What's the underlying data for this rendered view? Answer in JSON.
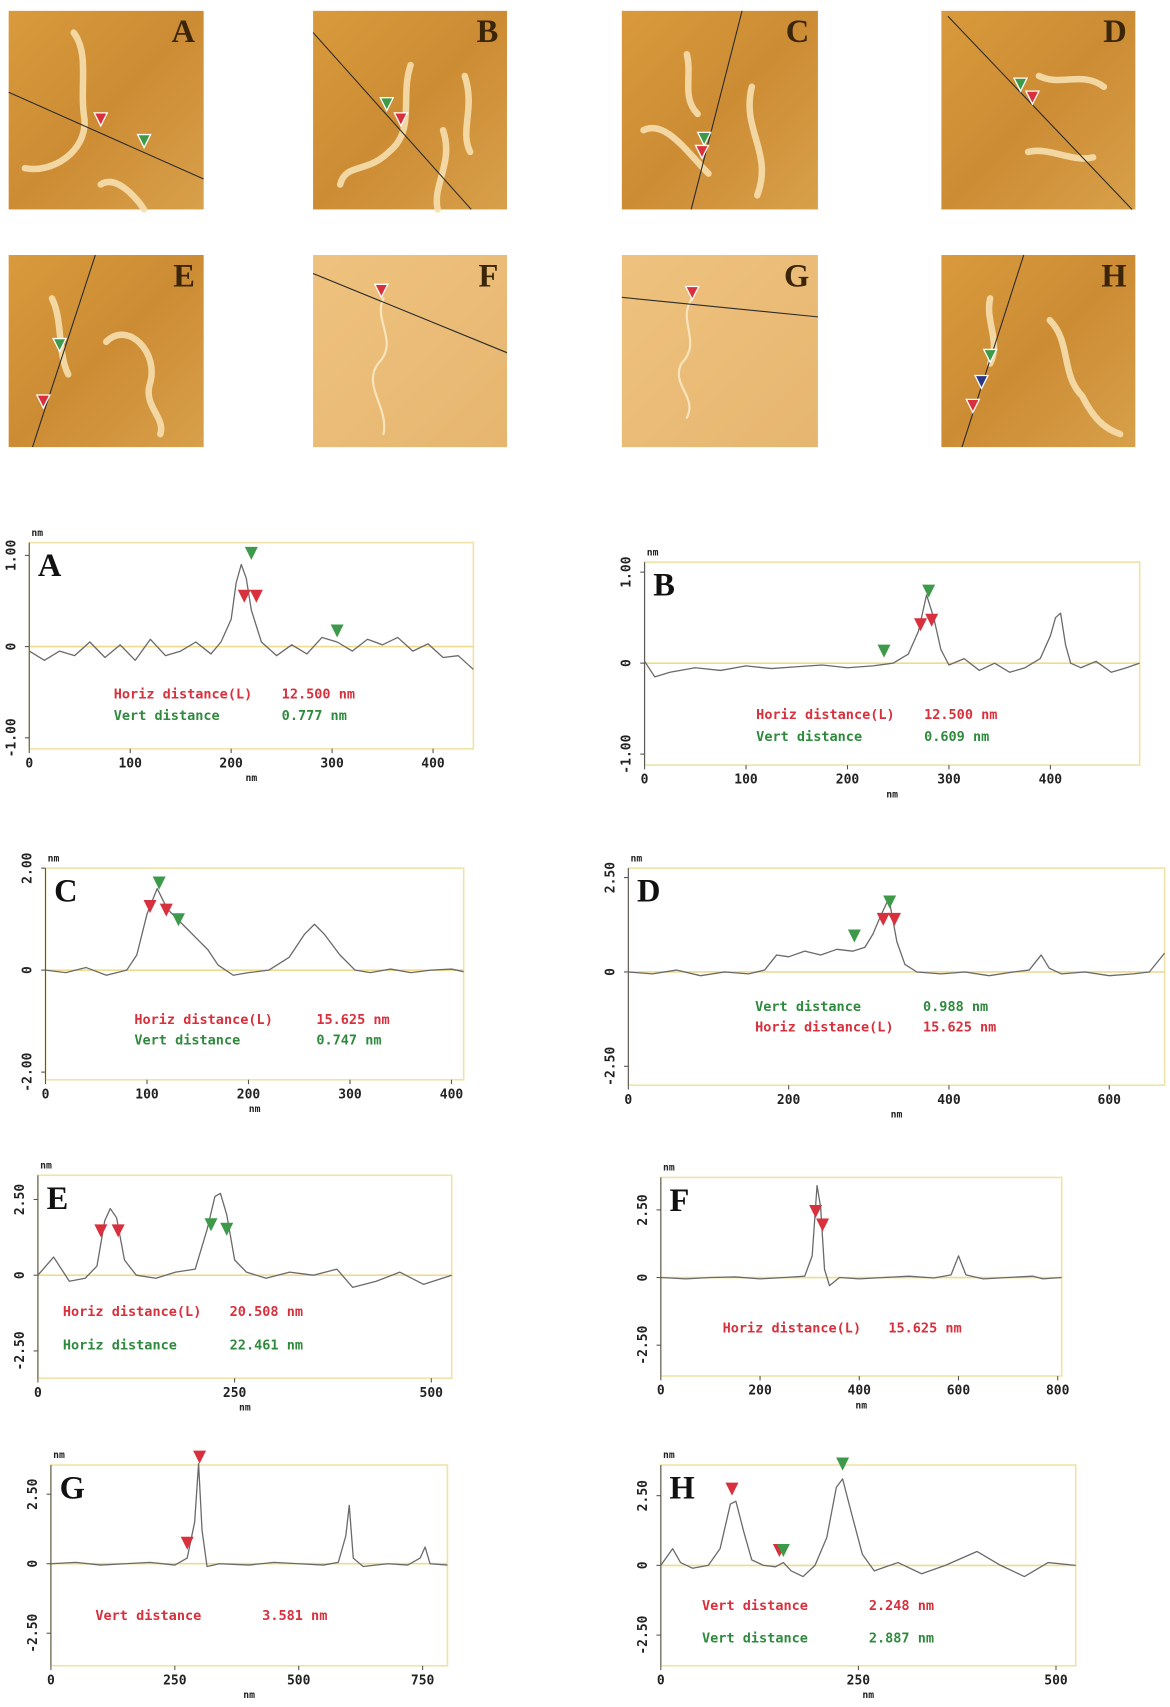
{
  "images": [
    {
      "label": "A"
    },
    {
      "label": "B"
    },
    {
      "label": "C"
    },
    {
      "label": "D"
    },
    {
      "label": "E"
    },
    {
      "label": "F"
    },
    {
      "label": "G"
    },
    {
      "label": "H"
    }
  ],
  "chart_data": [
    {
      "type": "line",
      "panel": "A",
      "y_unit": "nm",
      "x_label": "nm",
      "xlim": [
        0,
        440
      ],
      "xticks": [
        0,
        100,
        200,
        300,
        400
      ],
      "ylim": [
        -1.12,
        1.14
      ],
      "yticks": [
        {
          "value": -1,
          "label": "-1.00"
        },
        0,
        {
          "value": 1,
          "label": "1.00"
        }
      ],
      "x": [
        0,
        15,
        30,
        45,
        60,
        75,
        90,
        105,
        120,
        135,
        150,
        165,
        180,
        190,
        200,
        205,
        210,
        215,
        220,
        230,
        245,
        260,
        275,
        290,
        305,
        320,
        335,
        350,
        365,
        380,
        395,
        410,
        425,
        440
      ],
      "series": [
        {
          "color": "#6a6a6a",
          "values": [
            -0.05,
            -0.15,
            -0.05,
            -0.1,
            0.05,
            -0.12,
            0.02,
            -0.15,
            0.08,
            -0.1,
            -0.05,
            0.05,
            -0.08,
            0.05,
            0.3,
            0.7,
            0.9,
            0.75,
            0.4,
            0.05,
            -0.1,
            0.02,
            -0.08,
            0.1,
            0.05,
            -0.05,
            0.08,
            0.02,
            0.1,
            -0.05,
            0.03,
            -0.12,
            -0.1,
            -0.25
          ]
        }
      ],
      "markers": [
        {
          "x": 220,
          "y": 0.95,
          "color": "#3d9a4a"
        },
        {
          "x": 213,
          "y": 0.48,
          "color": "#d8303c"
        },
        {
          "x": 225,
          "y": 0.48,
          "color": "#d8303c"
        },
        {
          "x": 305,
          "y": 0.1,
          "color": "#3d9a4a"
        }
      ],
      "annotations": [
        {
          "label": "Horiz distance(L)",
          "value": "12.500 nm",
          "color": "#d8303c"
        },
        {
          "label": "Vert distance",
          "value": "0.777 nm",
          "color": "#2f8a3e"
        }
      ]
    },
    {
      "type": "line",
      "panel": "B",
      "y_unit": "nm",
      "x_label": "nm",
      "xlim": [
        0,
        488
      ],
      "xticks": [
        0,
        100,
        200,
        300,
        400
      ],
      "ylim": [
        -1.12,
        1.11
      ],
      "yticks": [
        {
          "value": -1,
          "label": "-1.00"
        },
        0,
        {
          "value": 1,
          "label": "1.00"
        }
      ],
      "x": [
        0,
        10,
        25,
        50,
        75,
        100,
        125,
        150,
        175,
        200,
        225,
        245,
        260,
        270,
        278,
        285,
        292,
        300,
        315,
        330,
        345,
        360,
        375,
        390,
        400,
        405,
        410,
        415,
        420,
        430,
        445,
        460,
        475,
        488
      ],
      "series": [
        {
          "color": "#6a6a6a",
          "values": [
            0.02,
            -0.15,
            -0.1,
            -0.05,
            -0.08,
            -0.03,
            -0.06,
            -0.04,
            -0.02,
            -0.05,
            -0.03,
            0.0,
            0.1,
            0.35,
            0.75,
            0.5,
            0.15,
            -0.02,
            0.05,
            -0.08,
            0.0,
            -0.1,
            -0.05,
            0.05,
            0.3,
            0.5,
            0.55,
            0.2,
            0.0,
            -0.05,
            0.02,
            -0.1,
            -0.05,
            0.0
          ]
        }
      ],
      "markers": [
        {
          "x": 236,
          "y": 0.06,
          "color": "#3d9a4a"
        },
        {
          "x": 272,
          "y": 0.35,
          "color": "#d8303c"
        },
        {
          "x": 283,
          "y": 0.4,
          "color": "#d8303c"
        },
        {
          "x": 280,
          "y": 0.72,
          "color": "#3d9a4a"
        }
      ],
      "annotations": [
        {
          "label": "Horiz distance(L)",
          "value": "12.500 nm",
          "color": "#d8303c"
        },
        {
          "label": "Vert distance",
          "value": "0.609 nm",
          "color": "#2f8a3e"
        }
      ]
    },
    {
      "type": "line",
      "panel": "C",
      "y_unit": "nm",
      "x_label": "nm",
      "xlim": [
        0,
        412
      ],
      "xticks": [
        0,
        100,
        200,
        300,
        400
      ],
      "ylim": [
        -2.15,
        2.0
      ],
      "yticks": [
        {
          "value": -2,
          "label": "-2.00"
        },
        0,
        {
          "value": 2,
          "label": "2.00"
        }
      ],
      "x": [
        0,
        20,
        40,
        60,
        80,
        90,
        100,
        110,
        120,
        130,
        140,
        150,
        160,
        170,
        185,
        200,
        220,
        240,
        255,
        265,
        275,
        290,
        305,
        320,
        340,
        360,
        380,
        400,
        412
      ],
      "series": [
        {
          "color": "#6a6a6a",
          "values": [
            0,
            -0.05,
            0.05,
            -0.1,
            0.0,
            0.3,
            1.1,
            1.6,
            1.2,
            1.0,
            0.8,
            0.6,
            0.4,
            0.1,
            -0.1,
            -0.05,
            0.0,
            0.25,
            0.7,
            0.9,
            0.7,
            0.3,
            0.0,
            -0.05,
            0.02,
            -0.05,
            0.0,
            0.02,
            -0.03
          ]
        }
      ],
      "markers": [
        {
          "x": 103,
          "y": 1.12,
          "color": "#d8303c"
        },
        {
          "x": 119,
          "y": 1.05,
          "color": "#d8303c"
        },
        {
          "x": 112,
          "y": 1.58,
          "color": "#3d9a4a"
        },
        {
          "x": 131,
          "y": 0.86,
          "color": "#3d9a4a"
        }
      ],
      "annotations": [
        {
          "label": "Horiz distance(L)",
          "value": "15.625 nm",
          "color": "#d8303c"
        },
        {
          "label": "Vert distance",
          "value": "0.747 nm",
          "color": "#2f8a3e"
        }
      ]
    },
    {
      "type": "line",
      "panel": "D",
      "y_unit": "nm",
      "x_label": "nm",
      "xlim": [
        0,
        669
      ],
      "xticks": [
        0,
        200,
        400,
        600
      ],
      "ylim": [
        -3.0,
        2.75
      ],
      "yticks": [
        {
          "value": -2.5,
          "label": "-2.50"
        },
        0,
        {
          "value": 2.5,
          "label": "2.50"
        }
      ],
      "x": [
        0,
        30,
        60,
        90,
        120,
        150,
        170,
        185,
        200,
        220,
        240,
        260,
        280,
        295,
        305,
        315,
        325,
        335,
        345,
        360,
        390,
        420,
        450,
        480,
        500,
        515,
        525,
        540,
        570,
        600,
        630,
        650,
        669
      ],
      "series": [
        {
          "color": "#6a6a6a",
          "values": [
            0,
            -0.05,
            0.05,
            -0.1,
            0.0,
            -0.05,
            0.05,
            0.45,
            0.4,
            0.55,
            0.45,
            0.6,
            0.55,
            0.65,
            1.0,
            1.5,
            1.95,
            0.8,
            0.2,
            0.0,
            -0.05,
            0.0,
            -0.1,
            0.0,
            0.05,
            0.45,
            0.1,
            -0.05,
            0.0,
            -0.1,
            -0.05,
            0.0,
            0.5
          ]
        }
      ],
      "markers": [
        {
          "x": 282,
          "y": 0.78,
          "color": "#3d9a4a"
        },
        {
          "x": 318,
          "y": 1.22,
          "color": "#d8303c"
        },
        {
          "x": 332,
          "y": 1.22,
          "color": "#d8303c"
        },
        {
          "x": 326,
          "y": 1.68,
          "color": "#3d9a4a"
        }
      ],
      "annotations": [
        {
          "label": "Vert distance",
          "value": "0.988 nm",
          "color": "#2f8a3e"
        },
        {
          "label": "Horiz distance(L)",
          "value": "15.625 nm",
          "color": "#d8303c"
        }
      ]
    },
    {
      "type": "line",
      "panel": "E",
      "y_unit": "nm",
      "x_label": "nm",
      "xlim": [
        0,
        526
      ],
      "xticks": [
        0,
        250,
        500
      ],
      "ylim": [
        -3.4,
        3.3
      ],
      "yticks": [
        {
          "value": -2.5,
          "label": "-2.50"
        },
        0,
        {
          "value": 2.5,
          "label": "2.50"
        }
      ],
      "x": [
        0,
        20,
        40,
        60,
        75,
        85,
        92,
        100,
        110,
        125,
        150,
        175,
        200,
        215,
        225,
        232,
        240,
        250,
        265,
        290,
        320,
        350,
        380,
        400,
        430,
        460,
        490,
        526
      ],
      "series": [
        {
          "color": "#6a6a6a",
          "values": [
            0,
            0.6,
            -0.2,
            -0.1,
            0.3,
            1.8,
            2.2,
            1.9,
            0.5,
            0.0,
            -0.1,
            0.1,
            0.2,
            1.5,
            2.6,
            2.7,
            2.0,
            0.5,
            0.1,
            -0.1,
            0.1,
            0.0,
            0.2,
            -0.4,
            -0.2,
            0.1,
            -0.3,
            0.0
          ]
        }
      ],
      "markers": [
        {
          "x": 80,
          "y": 1.25,
          "color": "#d8303c"
        },
        {
          "x": 102,
          "y": 1.25,
          "color": "#d8303c"
        },
        {
          "x": 220,
          "y": 1.45,
          "color": "#3d9a4a"
        },
        {
          "x": 240,
          "y": 1.3,
          "color": "#3d9a4a"
        }
      ],
      "annotations": [
        {
          "label": "Horiz distance(L)",
          "value": "20.508 nm",
          "color": "#d8303c"
        },
        {
          "label": "Horiz distance",
          "value": "22.461 nm",
          "color": "#2f8a3e"
        }
      ]
    },
    {
      "type": "line",
      "panel": "F",
      "y_unit": "nm",
      "x_label": "nm",
      "xlim": [
        0,
        808
      ],
      "xticks": [
        0,
        200,
        400,
        600,
        800
      ],
      "ylim": [
        -3.64,
        3.7
      ],
      "yticks": [
        {
          "value": -2.5,
          "label": "-2.50"
        },
        0,
        {
          "value": 2.5,
          "label": "2.50"
        }
      ],
      "x": [
        0,
        50,
        100,
        150,
        200,
        250,
        290,
        305,
        315,
        322,
        330,
        340,
        360,
        400,
        450,
        500,
        550,
        585,
        600,
        615,
        650,
        700,
        750,
        770,
        808
      ],
      "series": [
        {
          "color": "#6a6a6a",
          "values": [
            0,
            -0.05,
            0.0,
            0.02,
            -0.05,
            0.0,
            0.05,
            0.8,
            3.4,
            2.6,
            0.3,
            -0.3,
            0.0,
            -0.05,
            0.0,
            0.05,
            -0.02,
            0.1,
            0.8,
            0.1,
            -0.05,
            0.0,
            0.05,
            -0.05,
            0.0
          ]
        }
      ],
      "markers": [
        {
          "x": 312,
          "y": 2.2,
          "color": "#d8303c"
        },
        {
          "x": 326,
          "y": 1.7,
          "color": "#d8303c"
        }
      ],
      "annotations": [
        {
          "label": "Horiz distance(L)",
          "value": "15.625 nm",
          "color": "#d8303c"
        }
      ]
    },
    {
      "type": "line",
      "panel": "G",
      "y_unit": "nm",
      "x_label": "nm",
      "xlim": [
        0,
        800
      ],
      "xticks": [
        0,
        250,
        500,
        750
      ],
      "ylim": [
        -3.67,
        3.55
      ],
      "yticks": [
        {
          "value": -2.5,
          "label": "-2.50"
        },
        0,
        {
          "value": 2.5,
          "label": "2.50"
        }
      ],
      "x": [
        0,
        50,
        100,
        150,
        200,
        250,
        275,
        290,
        298,
        305,
        315,
        340,
        400,
        450,
        500,
        550,
        580,
        595,
        602,
        610,
        630,
        680,
        720,
        745,
        755,
        765,
        800
      ],
      "series": [
        {
          "color": "#6a6a6a",
          "values": [
            0,
            0.05,
            -0.05,
            0.0,
            0.05,
            -0.05,
            0.2,
            1.5,
            3.6,
            1.2,
            -0.1,
            0.0,
            -0.05,
            0.05,
            0.0,
            -0.05,
            0.05,
            1.0,
            2.1,
            0.2,
            -0.1,
            0.0,
            -0.05,
            0.2,
            0.6,
            0.0,
            -0.05
          ]
        }
      ],
      "markers": [
        {
          "x": 275,
          "y": 0.5,
          "color": "#d8303c"
        },
        {
          "x": 300,
          "y": 3.6,
          "color": "#d8303c"
        }
      ],
      "annotations": [
        {
          "label": "Vert distance",
          "value": "3.581 nm",
          "color": "#d8303c"
        }
      ]
    },
    {
      "type": "line",
      "panel": "H",
      "y_unit": "nm",
      "x_label": "nm",
      "xlim": [
        0,
        525
      ],
      "xticks": [
        0,
        250,
        500
      ],
      "ylim": [
        -3.6,
        3.6
      ],
      "yticks": [
        {
          "value": -2.5,
          "label": "-2.50"
        },
        0,
        {
          "value": 2.5,
          "label": "2.50"
        }
      ],
      "x": [
        0,
        15,
        25,
        40,
        60,
        75,
        88,
        95,
        105,
        115,
        130,
        145,
        155,
        165,
        180,
        195,
        210,
        222,
        230,
        240,
        255,
        270,
        300,
        330,
        360,
        400,
        430,
        460,
        490,
        525
      ],
      "series": [
        {
          "color": "#6a6a6a",
          "values": [
            0,
            0.6,
            0.1,
            -0.1,
            0.0,
            0.6,
            2.2,
            2.3,
            1.2,
            0.2,
            0.0,
            -0.05,
            0.1,
            -0.2,
            -0.4,
            0.0,
            1.0,
            2.8,
            3.1,
            2.0,
            0.4,
            -0.2,
            0.1,
            -0.3,
            0.0,
            0.5,
            0.0,
            -0.4,
            0.1,
            0.0
          ]
        }
      ],
      "markers": [
        {
          "x": 90,
          "y": 2.5,
          "color": "#d8303c"
        },
        {
          "x": 150,
          "y": 0.3,
          "color": "#d8303c"
        },
        {
          "x": 155,
          "y": 0.3,
          "color": "#3d9a4a"
        },
        {
          "x": 230,
          "y": 3.4,
          "color": "#3d9a4a"
        }
      ],
      "annotations": [
        {
          "label": "Vert distance",
          "value": "2.248 nm",
          "color": "#d8303c"
        },
        {
          "label": "Vert distance",
          "value": "2.887 nm",
          "color": "#2f8a3e"
        }
      ]
    }
  ]
}
